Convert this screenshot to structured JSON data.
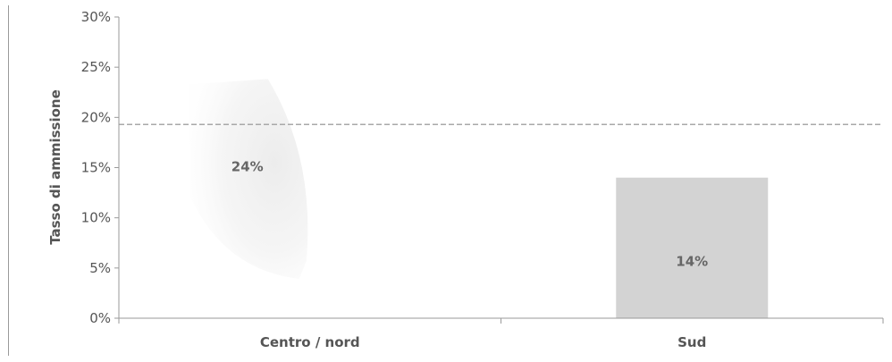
{
  "chart_data": {
    "type": "bar",
    "title": "",
    "xlabel": "",
    "ylabel": "Tasso di ammissione",
    "categories": [
      "Centro / nord",
      "Sud"
    ],
    "values": [
      24,
      14
    ],
    "data_labels": [
      "24%",
      "14%"
    ],
    "ylim": [
      0,
      30
    ],
    "yticks": [
      0,
      5,
      10,
      15,
      20,
      25,
      30
    ],
    "ytick_labels": [
      "0%",
      "5%",
      "10%",
      "15%",
      "20%",
      "25%",
      "30%"
    ],
    "reference_line": {
      "value": 19.3,
      "style": "dashed"
    },
    "grid": false,
    "legend": "none",
    "colors": {
      "bar_faded": "#f1f1f1",
      "bar": "#d3d3d3",
      "axis": "#9a9a9a",
      "reference_line": "#a8a8a8",
      "text": "#555555"
    }
  }
}
